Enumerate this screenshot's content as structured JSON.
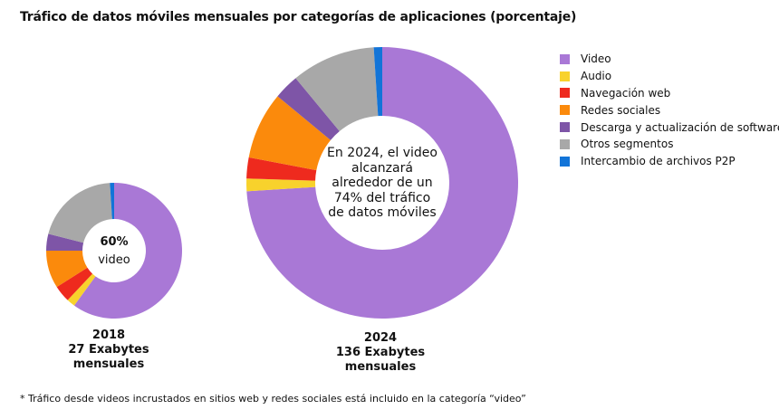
{
  "title": "Tráfico de datos móviles mensuales por categorías de aplicaciones (porcentaje)",
  "chart_data": [
    {
      "type": "pie",
      "variant": "donut",
      "year": "2018",
      "caption": [
        "2018",
        "27 Exabytes",
        "mensuales"
      ],
      "center_value": "60%",
      "center_label": "video",
      "categories": [
        "Video",
        "Audio",
        "Navegación web",
        "Redes sociales",
        "Descarga y actualización de software",
        "Otros segmentos",
        "Intercambio de archivos P2P"
      ],
      "values": [
        60,
        2,
        4,
        9,
        4,
        20,
        1
      ]
    },
    {
      "type": "pie",
      "variant": "donut",
      "year": "2024",
      "caption": [
        "2024",
        "136 Exabytes",
        "mensuales"
      ],
      "center_text": [
        "En 2024, el video",
        "alcanzará",
        "alrededor de un",
        "74% del tráfico",
        "de datos móviles"
      ],
      "categories": [
        "Video",
        "Audio",
        "Navegación web",
        "Redes sociales",
        "Descarga y actualización de software",
        "Otros segmentos",
        "Intercambio de archivos P2P"
      ],
      "values": [
        74,
        1.5,
        2.5,
        8,
        3,
        10,
        1
      ]
    }
  ],
  "legend": [
    {
      "label": "Video",
      "color": "#a978d6"
    },
    {
      "label": "Audio",
      "color": "#f8d22c"
    },
    {
      "label": "Navegación web",
      "color": "#ee2a1e"
    },
    {
      "label": "Redes sociales",
      "color": "#fb8a0c"
    },
    {
      "label": "Descarga y actualización de software",
      "color": "#7e55a7"
    },
    {
      "label": "Otros segmentos",
      "color": "#a8a8a8"
    },
    {
      "label": "Intercambio de archivos P2P",
      "color": "#1274d8"
    }
  ],
  "footnote": "* Tráfico desde videos incrustados en sitios web y redes sociales está incluido en la categoría “video”"
}
